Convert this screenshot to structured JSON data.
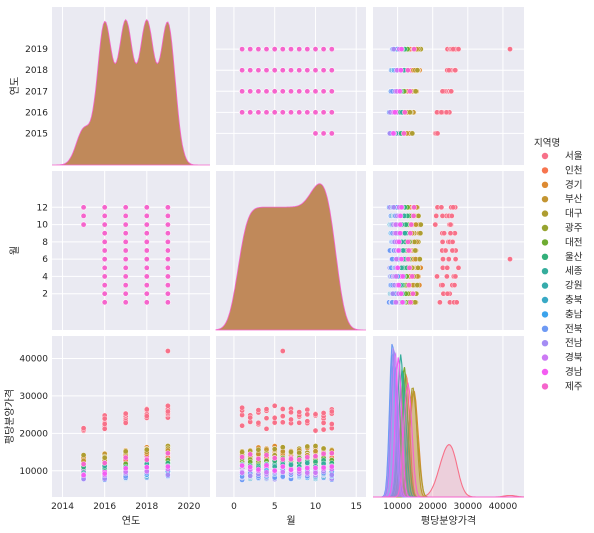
{
  "chart_data": {
    "type": "scatter",
    "subtype": "pairplot",
    "variables": [
      "연도",
      "월",
      "평당분양가격"
    ],
    "hue": "지역명",
    "legend": {
      "title": "지역명",
      "placement": "right",
      "entries": [
        {
          "name": "서울",
          "color": "#f77189"
        },
        {
          "name": "인천",
          "color": "#f7754f"
        },
        {
          "name": "경기",
          "color": "#dd8a32"
        },
        {
          "name": "부산",
          "color": "#c39532"
        },
        {
          "name": "대구",
          "color": "#ae9d31"
        },
        {
          "name": "광주",
          "color": "#97a431"
        },
        {
          "name": "대전",
          "color": "#6eac31"
        },
        {
          "name": "울산",
          "color": "#33b07a"
        },
        {
          "name": "세종",
          "color": "#35ad9c"
        },
        {
          "name": "강원",
          "color": "#36abab"
        },
        {
          "name": "충북",
          "color": "#38a9c5"
        },
        {
          "name": "충남",
          "color": "#3ba3ec"
        },
        {
          "name": "전북",
          "color": "#6e9af4"
        },
        {
          "name": "전남",
          "color": "#a48cf4"
        },
        {
          "name": "경북",
          "color": "#cc7af4"
        },
        {
          "name": "경남",
          "color": "#f45cf2"
        },
        {
          "name": "제주",
          "color": "#f565cc"
        }
      ]
    },
    "axes": {
      "연도": {
        "label": "연도",
        "range": [
          2013.5,
          2021
        ],
        "ticks": [
          2014,
          2016,
          2018,
          2020
        ],
        "ytick_labels": [
          2015,
          2016,
          2017,
          2018,
          2019
        ]
      },
      "월": {
        "label": "월",
        "range": [
          -2.2,
          16.2
        ],
        "ticks": [
          0,
          5,
          10,
          15
        ],
        "ytick_labels": [
          2,
          4,
          6,
          8,
          10,
          12
        ]
      },
      "평당분양가격": {
        "label": "평당분양가격",
        "range": [
          3000,
          46000
        ],
        "ticks": [
          10000,
          20000,
          30000,
          40000
        ],
        "ytick_labels": [
          10000,
          20000,
          30000,
          40000
        ]
      }
    },
    "grid": true,
    "observed_months": {
      "2015": [
        10,
        11,
        12
      ],
      "2016": [
        1,
        2,
        3,
        4,
        5,
        6,
        7,
        8,
        9,
        10,
        11,
        12
      ],
      "2017": [
        1,
        2,
        3,
        4,
        5,
        6,
        7,
        8,
        9,
        10,
        11,
        12
      ],
      "2018": [
        1,
        2,
        3,
        4,
        5,
        6,
        7,
        8,
        9,
        10,
        11,
        12
      ],
      "2019": [
        1,
        2,
        3,
        4,
        5,
        6,
        7,
        8,
        9,
        10,
        11,
        12
      ]
    },
    "region_price_levels": [
      {
        "name": "서울",
        "price": 21500
      },
      {
        "name": "인천",
        "price": 11000
      },
      {
        "name": "경기",
        "price": 13000
      },
      {
        "name": "부산",
        "price": 12500
      },
      {
        "name": "대구",
        "price": 12800
      },
      {
        "name": "광주",
        "price": 10500
      },
      {
        "name": "대전",
        "price": 10500
      },
      {
        "name": "울산",
        "price": 10000
      },
      {
        "name": "세종",
        "price": 9700
      },
      {
        "name": "강원",
        "price": 8000
      },
      {
        "name": "충북",
        "price": 7700
      },
      {
        "name": "충남",
        "price": 8000
      },
      {
        "name": "전북",
        "price": 7500
      },
      {
        "name": "전남",
        "price": 7800
      },
      {
        "name": "경북",
        "price": 8200
      },
      {
        "name": "경남",
        "price": 9000
      },
      {
        "name": "제주",
        "price": 11500
      }
    ],
    "max_price_point": {
      "region": "서울",
      "year": 2019,
      "month": 6,
      "price": 42000
    }
  }
}
